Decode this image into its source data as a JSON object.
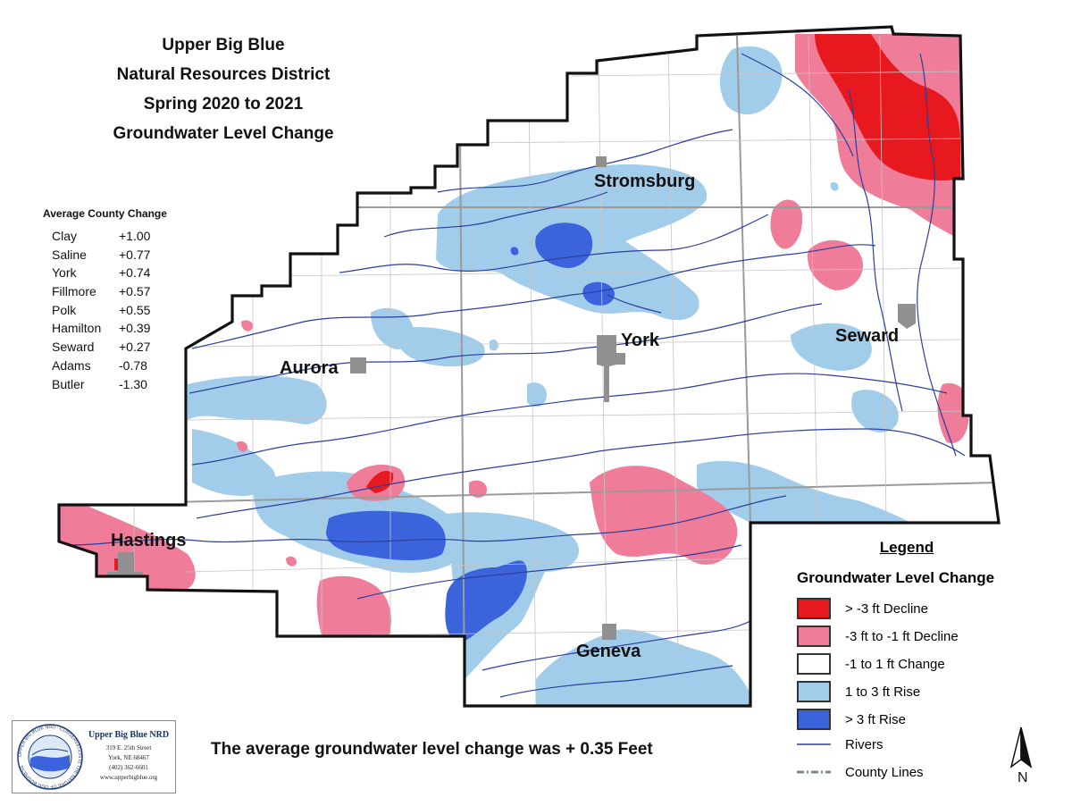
{
  "title": {
    "line1": "Upper Big Blue",
    "line2": "Natural Resources District",
    "line3": "Spring 2020 to 2021",
    "line4": "Groundwater Level Change"
  },
  "county_change": {
    "heading": "Average County Change",
    "rows": [
      {
        "name": "Clay",
        "value": "+1.00"
      },
      {
        "name": "Saline",
        "value": "+0.77"
      },
      {
        "name": "York",
        "value": "+0.74"
      },
      {
        "name": "Fillmore",
        "value": "+0.57"
      },
      {
        "name": "Polk",
        "value": "+0.55"
      },
      {
        "name": "Hamilton",
        "value": "+0.39"
      },
      {
        "name": "Seward",
        "value": "+0.27"
      },
      {
        "name": "Adams",
        "value": "-0.78"
      },
      {
        "name": "Butler",
        "value": "-1.30"
      }
    ]
  },
  "cities": {
    "stromsburg": "Stromsburg",
    "york": "York",
    "seward": "Seward",
    "aurora": "Aurora",
    "hastings": "Hastings",
    "geneva": "Geneva"
  },
  "legend": {
    "title": "Legend",
    "subtitle": "Groundwater Level Change",
    "items": [
      {
        "label": "> -3 ft Decline",
        "color": "#e8191e"
      },
      {
        "label": "-3 ft to -1 ft Decline",
        "color": "#ef7d9a"
      },
      {
        "label": "-1 to 1 ft Change",
        "color": "#ffffff"
      },
      {
        "label": "1 to 3 ft Rise",
        "color": "#a2cdea"
      },
      {
        "label": "> 3 ft Rise",
        "color": "#3b63db"
      }
    ],
    "rivers_label": "Rivers",
    "county_lines_label": "County Lines"
  },
  "summary": "The average groundwater level change was + 0.35 Feet",
  "logo": {
    "name": "Upper Big Blue NRD",
    "address1": "319 E. 25th Street",
    "address2": "York, NE 68467",
    "phone": "(402) 362-6601",
    "website": "www.upperbigblue.org",
    "ring_text": "UPPER BIG BLUE NRD · CONSERVATION IS THE NATURE OF OUR BUSINESS"
  },
  "north_label": "N",
  "colors": {
    "decline_severe": "#e8191e",
    "decline": "#ef7d9a",
    "neutral": "#ffffff",
    "rise": "#a2cdea",
    "rise_high": "#3b63db",
    "river": "#2c3e9e",
    "county_line": "#9a9a9a",
    "boundary": "#111111",
    "city": "#909090"
  }
}
